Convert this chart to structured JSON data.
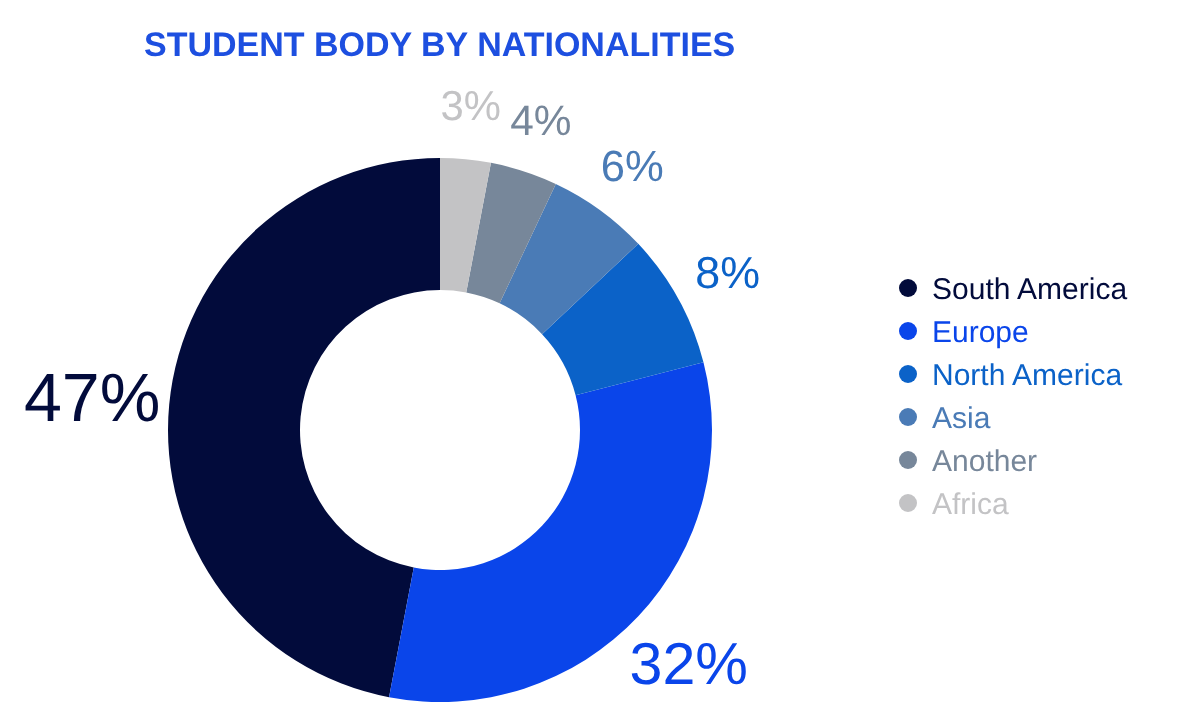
{
  "chart_data": {
    "type": "donut",
    "title": "STUDENT BODY BY NATIONALITIES",
    "categories": [
      "South America",
      "Europe",
      "North America",
      "Asia",
      "Another",
      "Africa"
    ],
    "values": [
      47,
      32,
      8,
      6,
      4,
      3
    ],
    "value_labels": [
      "47%",
      "32%",
      "8%",
      "6%",
      "4%",
      "3%"
    ],
    "colors": [
      "#020b3b",
      "#0a45ea",
      "#0b62c8",
      "#4a7bb6",
      "#77879a",
      "#c3c3c5"
    ],
    "legend": "right"
  }
}
